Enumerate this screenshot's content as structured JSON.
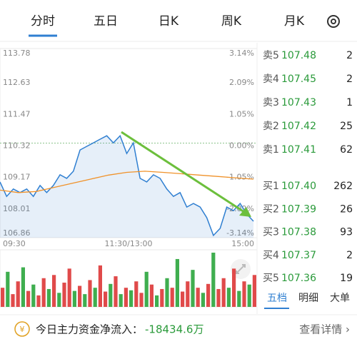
{
  "tabs": [
    "分时",
    "五日",
    "日K",
    "周K",
    "月K"
  ],
  "chart": {
    "type": "line",
    "yticks": [
      {
        "value": 113.78,
        "label": "113.78"
      },
      {
        "value": 112.63,
        "label": "112.63"
      },
      {
        "value": 111.47,
        "label": "111.47"
      },
      {
        "value": 110.32,
        "label": "110.32"
      },
      {
        "value": 109.17,
        "label": "109.17"
      },
      {
        "value": 108.01,
        "label": "108.01"
      },
      {
        "value": 106.86,
        "label": "106.86"
      }
    ],
    "y2ticks": [
      {
        "value": 3.14,
        "label": "3.14%"
      },
      {
        "value": 2.09,
        "label": "2.09%"
      },
      {
        "value": 1.05,
        "label": "1.05%"
      },
      {
        "value": 0,
        "label": "0.00%"
      },
      {
        "value": -1.05,
        "label": "-1.05%"
      },
      {
        "value": -2.09,
        "label": "-2.09%"
      },
      {
        "value": -3.14,
        "label": "-3.14%"
      }
    ],
    "ylim": [
      106.86,
      113.78
    ],
    "x_labels": [
      "09:30",
      "11:30/13:00",
      "15:00"
    ],
    "price": {
      "color": "#2f7fd1",
      "values": [
        108.9,
        108.37,
        108.64,
        108.51,
        108.64,
        108.37,
        108.77,
        108.51,
        108.77,
        109.16,
        109.03,
        109.29,
        110.07,
        110.2,
        110.33,
        110.46,
        110.59,
        110.33,
        110.59,
        109.94,
        110.33,
        109.03,
        108.9,
        109.16,
        109.03,
        108.64,
        108.37,
        108.51,
        107.98,
        108.11,
        107.98,
        107.59,
        106.94,
        107.2,
        107.98,
        107.85,
        108.11,
        107.72,
        107.46
      ]
    },
    "average": {
      "color": "#f0922a",
      "values": [
        108.6,
        108.51,
        108.55,
        108.7,
        108.85,
        109.0,
        109.15,
        109.25,
        109.29,
        109.25,
        109.2,
        109.15,
        109.1,
        109.05,
        109.0
      ]
    },
    "volume": [
      30,
      55,
      20,
      40,
      62,
      25,
      35,
      18,
      45,
      28,
      50,
      22,
      38,
      60,
      25,
      33,
      20,
      42,
      30,
      65,
      24,
      36,
      48,
      20,
      30,
      26,
      40,
      22,
      55,
      35,
      18,
      28,
      45,
      30,
      75,
      24,
      40,
      58,
      30,
      22,
      36,
      85,
      28,
      45,
      30,
      60,
      25,
      40,
      35,
      50
    ],
    "volume_up": [
      1,
      0,
      1,
      1,
      0,
      1,
      0,
      1,
      1,
      0,
      1,
      0,
      1,
      1,
      0,
      1,
      0,
      1,
      0,
      1,
      1,
      0,
      1,
      0,
      1,
      0,
      1,
      1,
      0,
      1,
      0,
      1,
      0,
      1,
      0,
      1,
      1,
      0,
      1,
      0,
      1,
      0,
      1,
      1,
      0,
      1,
      0,
      1,
      0,
      1
    ]
  },
  "order_book": [
    {
      "label": "卖5",
      "price": "107.48",
      "qty": 2
    },
    {
      "label": "卖4",
      "price": "107.45",
      "qty": 2
    },
    {
      "label": "卖3",
      "price": "107.43",
      "qty": 1
    },
    {
      "label": "卖2",
      "price": "107.42",
      "qty": 25
    },
    {
      "label": "卖1",
      "price": "107.41",
      "qty": 62
    },
    {
      "label": "买1",
      "price": "107.40",
      "qty": 262
    },
    {
      "label": "买2",
      "price": "107.39",
      "qty": 26
    },
    {
      "label": "买3",
      "price": "107.38",
      "qty": 93
    },
    {
      "label": "买4",
      "price": "107.37",
      "qty": 2
    },
    {
      "label": "买5",
      "price": "107.36",
      "qty": 19
    }
  ],
  "book_tabs": [
    "五档",
    "明细",
    "大单"
  ],
  "footer": {
    "label": "今日主力资金净流入：",
    "value": "-18434.6万",
    "link": "查看详情 ›"
  }
}
